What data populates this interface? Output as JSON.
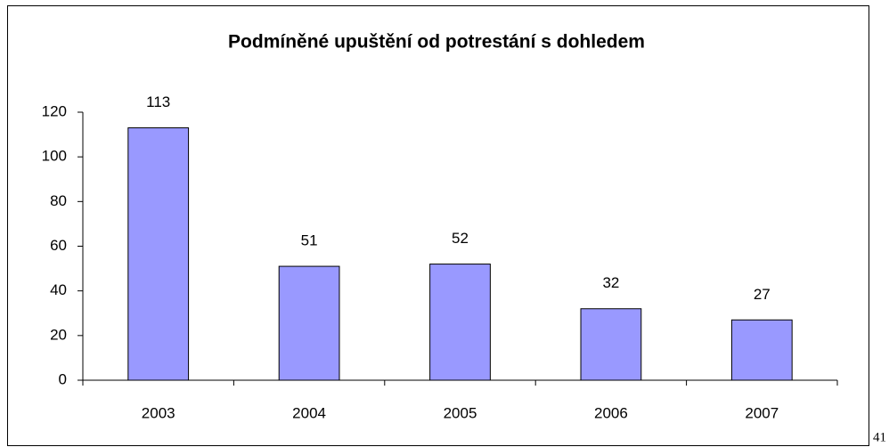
{
  "chart_data": {
    "type": "bar",
    "title": "Podmíněné upuštění od potrestání s dohledem",
    "categories": [
      "2003",
      "2004",
      "2005",
      "2006",
      "2007"
    ],
    "values": [
      113,
      51,
      52,
      32,
      27
    ],
    "color": "#9999ff",
    "ylim": [
      0,
      120
    ],
    "yticks": [
      0,
      20,
      40,
      60,
      80,
      100,
      120
    ],
    "grid": false
  },
  "page_number": "41"
}
